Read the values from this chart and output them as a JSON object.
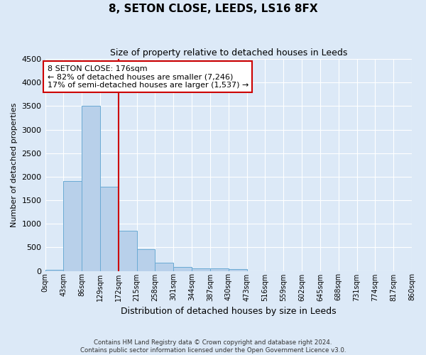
{
  "title": "8, SETON CLOSE, LEEDS, LS16 8FX",
  "subtitle": "Size of property relative to detached houses in Leeds",
  "xlabel": "Distribution of detached houses by size in Leeds",
  "ylabel": "Number of detached properties",
  "bin_edges": [
    0,
    43,
    86,
    129,
    172,
    215,
    258,
    301,
    344,
    387,
    430,
    473,
    516,
    559,
    602,
    645,
    688,
    731,
    774,
    817,
    860
  ],
  "bar_heights": [
    30,
    1910,
    3500,
    1780,
    850,
    460,
    175,
    90,
    55,
    50,
    40,
    0,
    0,
    0,
    0,
    0,
    0,
    0,
    0,
    0
  ],
  "bar_color": "#b8d0ea",
  "bar_edge_color": "#6aaad4",
  "vline_x": 172,
  "vline_color": "#cc0000",
  "annotation_title": "8 SETON CLOSE: 176sqm",
  "annotation_line1": "← 82% of detached houses are smaller (7,246)",
  "annotation_line2": "17% of semi-detached houses are larger (1,537) →",
  "annotation_box_color": "white",
  "annotation_box_edge": "#cc0000",
  "ylim": [
    0,
    4500
  ],
  "tick_labels": [
    "0sqm",
    "43sqm",
    "86sqm",
    "129sqm",
    "172sqm",
    "215sqm",
    "258sqm",
    "301sqm",
    "344sqm",
    "387sqm",
    "430sqm",
    "473sqm",
    "516sqm",
    "559sqm",
    "602sqm",
    "645sqm",
    "688sqm",
    "731sqm",
    "774sqm",
    "817sqm",
    "860sqm"
  ],
  "bg_color": "#dce9f7",
  "plot_bg_color": "#dce9f7",
  "grid_color": "white",
  "footer_line1": "Contains HM Land Registry data © Crown copyright and database right 2024.",
  "footer_line2": "Contains public sector information licensed under the Open Government Licence v3.0.",
  "title_fontsize": 11,
  "subtitle_fontsize": 9,
  "xlabel_fontsize": 9,
  "ylabel_fontsize": 8,
  "yticks": [
    0,
    500,
    1000,
    1500,
    2000,
    2500,
    3000,
    3500,
    4000,
    4500
  ]
}
